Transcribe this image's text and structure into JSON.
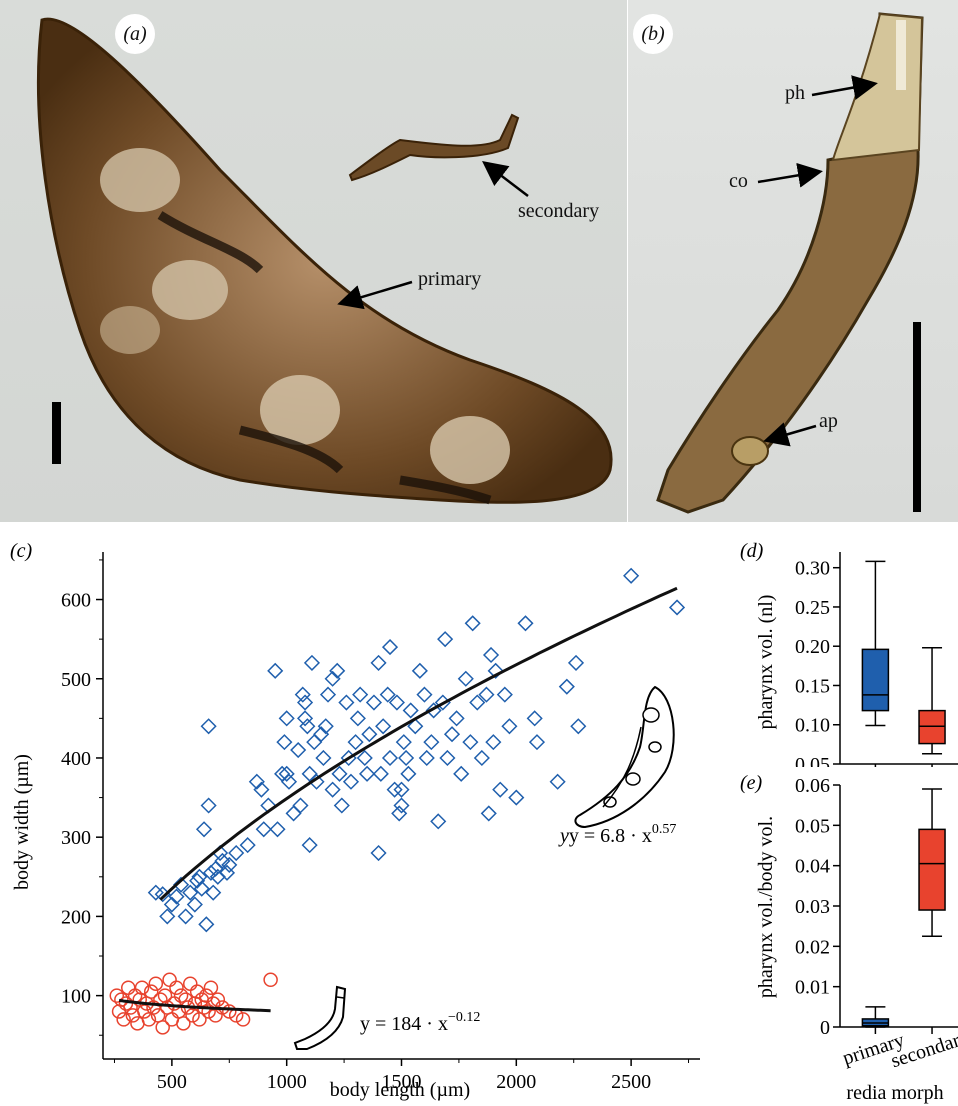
{
  "panel_a": {
    "label": "(a)",
    "annotations": {
      "secondary": "secondary",
      "primary": "primary"
    }
  },
  "panel_b": {
    "label": "(b)",
    "annotations": {
      "ph": "ph",
      "co": "co",
      "ap": "ap"
    }
  },
  "colors": {
    "primary": "#1f5fad",
    "secondary": "#e8432e",
    "fit": "#111111"
  },
  "chart_data": [
    {
      "panel": "(c)",
      "type": "scatter",
      "xlabel": "body length (µm)",
      "ylabel": "body width (µm)",
      "xlim": [
        200,
        2800
      ],
      "ylim": [
        20,
        660
      ],
      "xticks": [
        500,
        1000,
        1500,
        2000,
        2500
      ],
      "yticks": [
        100,
        200,
        300,
        400,
        500,
        600
      ],
      "grid": false,
      "series": [
        {
          "marker": "diamond",
          "color": "#1f5fad",
          "fit_equation": {
            "lhs": "y = 6.8 · x",
            "exp": "0.57"
          },
          "fit": {
            "a": 6.8,
            "b": 0.57,
            "x_range": [
              450,
              2700
            ]
          },
          "points": [
            [
              430,
              230
            ],
            [
              460,
              228
            ],
            [
              480,
              200
            ],
            [
              500,
              215
            ],
            [
              520,
              225
            ],
            [
              540,
              240
            ],
            [
              560,
              200
            ],
            [
              580,
              230
            ],
            [
              600,
              215
            ],
            [
              610,
              245
            ],
            [
              620,
              250
            ],
            [
              630,
              235
            ],
            [
              640,
              310
            ],
            [
              650,
              190
            ],
            [
              660,
              340
            ],
            [
              660,
              440
            ],
            [
              670,
              255
            ],
            [
              680,
              230
            ],
            [
              690,
              260
            ],
            [
              700,
              250
            ],
            [
              710,
              280
            ],
            [
              720,
              270
            ],
            [
              740,
              255
            ],
            [
              750,
              265
            ],
            [
              780,
              280
            ],
            [
              830,
              290
            ],
            [
              870,
              370
            ],
            [
              890,
              360
            ],
            [
              900,
              310
            ],
            [
              920,
              340
            ],
            [
              950,
              510
            ],
            [
              960,
              310
            ],
            [
              980,
              380
            ],
            [
              990,
              420
            ],
            [
              1000,
              450
            ],
            [
              1000,
              380
            ],
            [
              1010,
              370
            ],
            [
              1030,
              330
            ],
            [
              1050,
              410
            ],
            [
              1060,
              340
            ],
            [
              1070,
              480
            ],
            [
              1080,
              450
            ],
            [
              1080,
              470
            ],
            [
              1090,
              440
            ],
            [
              1100,
              380
            ],
            [
              1100,
              290
            ],
            [
              1110,
              520
            ],
            [
              1120,
              420
            ],
            [
              1130,
              370
            ],
            [
              1150,
              430
            ],
            [
              1160,
              400
            ],
            [
              1170,
              440
            ],
            [
              1180,
              480
            ],
            [
              1200,
              500
            ],
            [
              1200,
              360
            ],
            [
              1220,
              510
            ],
            [
              1230,
              380
            ],
            [
              1240,
              340
            ],
            [
              1260,
              470
            ],
            [
              1270,
              400
            ],
            [
              1280,
              370
            ],
            [
              1300,
              420
            ],
            [
              1310,
              450
            ],
            [
              1320,
              480
            ],
            [
              1340,
              400
            ],
            [
              1350,
              380
            ],
            [
              1360,
              430
            ],
            [
              1380,
              470
            ],
            [
              1400,
              280
            ],
            [
              1400,
              520
            ],
            [
              1410,
              380
            ],
            [
              1420,
              440
            ],
            [
              1440,
              480
            ],
            [
              1450,
              400
            ],
            [
              1450,
              540
            ],
            [
              1470,
              360
            ],
            [
              1480,
              470
            ],
            [
              1490,
              330
            ],
            [
              1500,
              340
            ],
            [
              1500,
              360
            ],
            [
              1510,
              420
            ],
            [
              1520,
              400
            ],
            [
              1530,
              380
            ],
            [
              1540,
              460
            ],
            [
              1560,
              440
            ],
            [
              1580,
              510
            ],
            [
              1600,
              480
            ],
            [
              1610,
              400
            ],
            [
              1630,
              420
            ],
            [
              1640,
              460
            ],
            [
              1660,
              320
            ],
            [
              1680,
              470
            ],
            [
              1690,
              550
            ],
            [
              1700,
              400
            ],
            [
              1720,
              430
            ],
            [
              1740,
              450
            ],
            [
              1760,
              380
            ],
            [
              1780,
              500
            ],
            [
              1800,
              420
            ],
            [
              1810,
              570
            ],
            [
              1830,
              470
            ],
            [
              1850,
              400
            ],
            [
              1870,
              480
            ],
            [
              1880,
              330
            ],
            [
              1890,
              530
            ],
            [
              1900,
              420
            ],
            [
              1910,
              510
            ],
            [
              1930,
              360
            ],
            [
              1950,
              480
            ],
            [
              1970,
              440
            ],
            [
              2000,
              350
            ],
            [
              2040,
              570
            ],
            [
              2080,
              450
            ],
            [
              2090,
              420
            ],
            [
              2180,
              370
            ],
            [
              2220,
              490
            ],
            [
              2260,
              520
            ],
            [
              2270,
              440
            ],
            [
              2500,
              630
            ],
            [
              2700,
              590
            ]
          ]
        },
        {
          "marker": "circle",
          "color": "#e8432e",
          "fit_equation": {
            "lhs": "y = 184 · x",
            "exp": "−0.12"
          },
          "fit": {
            "a": 184,
            "b": -0.12,
            "x_range": [
              270,
              930
            ]
          },
          "points": [
            [
              260,
              100
            ],
            [
              270,
              80
            ],
            [
              280,
              95
            ],
            [
              290,
              70
            ],
            [
              300,
              90
            ],
            [
              310,
              110
            ],
            [
              320,
              85
            ],
            [
              330,
              75
            ],
            [
              340,
              100
            ],
            [
              350,
              65
            ],
            [
              360,
              95
            ],
            [
              370,
              110
            ],
            [
              380,
              80
            ],
            [
              390,
              90
            ],
            [
              400,
              70
            ],
            [
              410,
              105
            ],
            [
              420,
              85
            ],
            [
              430,
              115
            ],
            [
              440,
              75
            ],
            [
              450,
              95
            ],
            [
              460,
              60
            ],
            [
              470,
              100
            ],
            [
              480,
              85
            ],
            [
              490,
              120
            ],
            [
              500,
              70
            ],
            [
              510,
              90
            ],
            [
              520,
              110
            ],
            [
              530,
              80
            ],
            [
              540,
              100
            ],
            [
              550,
              65
            ],
            [
              560,
              95
            ],
            [
              570,
              85
            ],
            [
              580,
              115
            ],
            [
              590,
              75
            ],
            [
              600,
              90
            ],
            [
              610,
              105
            ],
            [
              620,
              70
            ],
            [
              630,
              95
            ],
            [
              640,
              85
            ],
            [
              650,
              100
            ],
            [
              660,
              80
            ],
            [
              670,
              110
            ],
            [
              680,
              90
            ],
            [
              690,
              75
            ],
            [
              700,
              95
            ],
            [
              720,
              85
            ],
            [
              750,
              80
            ],
            [
              780,
              75
            ],
            [
              810,
              70
            ],
            [
              930,
              120
            ]
          ]
        }
      ]
    },
    {
      "panel": "(d)",
      "type": "box",
      "ylabel": "pharynx vol. (nl)",
      "ylim": [
        0.05,
        0.32
      ],
      "yticks": [
        "0.05",
        "0.10",
        "0.15",
        "0.20",
        "0.25",
        "0.30"
      ],
      "categories": [
        "primary",
        "secondary"
      ],
      "boxes": [
        {
          "category": "primary",
          "color": "#1f5fad",
          "min": 0.099,
          "q1": 0.118,
          "median": 0.138,
          "q3": 0.196,
          "max": 0.308
        },
        {
          "category": "secondary",
          "color": "#e8432e",
          "min": 0.063,
          "q1": 0.076,
          "median": 0.098,
          "q3": 0.118,
          "max": 0.198
        }
      ]
    },
    {
      "panel": "(e)",
      "type": "box",
      "xlabel": "redia morph",
      "ylabel": "pharynx vol./body vol.",
      "ylim": [
        0,
        0.06
      ],
      "yticks": [
        "0",
        "0.01",
        "0.02",
        "0.03",
        "0.04",
        "0.05",
        "0.06"
      ],
      "categories": [
        "primary",
        "secondary"
      ],
      "boxes": [
        {
          "category": "primary",
          "color": "#1f5fad",
          "min": 0.0,
          "q1": 0.0003,
          "median": 0.001,
          "q3": 0.002,
          "max": 0.005
        },
        {
          "category": "secondary",
          "color": "#e8432e",
          "min": 0.0225,
          "q1": 0.029,
          "median": 0.0405,
          "q3": 0.049,
          "max": 0.059
        }
      ]
    }
  ]
}
